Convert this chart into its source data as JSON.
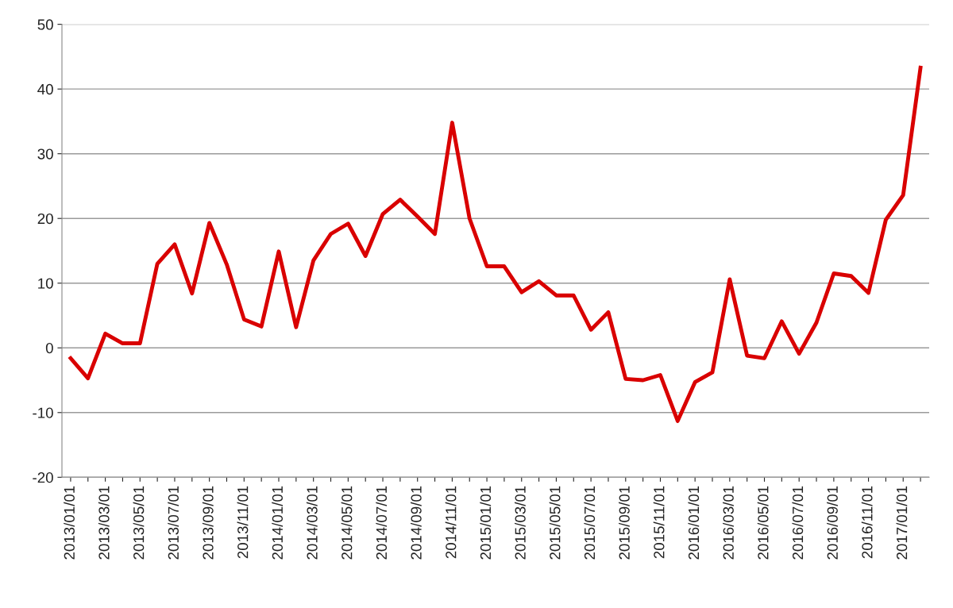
{
  "chart_data": {
    "type": "line",
    "categories": [
      "2013/01/01",
      null,
      "2013/03/01",
      null,
      "2013/05/01",
      null,
      "2013/07/01",
      null,
      "2013/09/01",
      null,
      "2013/11/01",
      null,
      "2014/01/01",
      null,
      "2014/03/01",
      null,
      "2014/05/01",
      null,
      "2014/07/01",
      null,
      "2014/09/01",
      null,
      "2014/11/01",
      null,
      "2015/01/01",
      null,
      "2015/03/01",
      null,
      "2015/05/01",
      null,
      "2015/07/01",
      null,
      "2015/09/01",
      null,
      "2015/11/01",
      null,
      "2016/01/01",
      null,
      "2016/03/01",
      null,
      "2016/05/01",
      null,
      "2016/07/01",
      null,
      "2016/09/01",
      null,
      "2016/11/01",
      null,
      "2017/01/01",
      null
    ],
    "series": [
      {
        "color": "#d90000",
        "values": [
          -1.6,
          -4.7,
          2.2,
          0.7,
          0.7,
          13,
          16,
          8.4,
          19.3,
          12.9,
          4.4,
          3.3,
          14.9,
          3.2,
          13.5,
          17.6,
          19.2,
          14.2,
          20.7,
          22.9,
          20.3,
          17.6,
          34.8,
          20,
          12.6,
          12.6,
          8.6,
          10.3,
          8.1,
          8.1,
          2.8,
          5.5,
          -4.8,
          -5,
          -4.2,
          -11.3,
          -5.3,
          -3.8,
          10.6,
          -1.2,
          -1.6,
          4.1,
          -0.9,
          3.9,
          11.5,
          11.1,
          8.5,
          19.8,
          23.6,
          43.3
        ]
      }
    ],
    "ylim": [
      -20,
      50
    ],
    "yticks": [
      -20,
      -10,
      0,
      10,
      20,
      30,
      40,
      50
    ],
    "grid": "y",
    "marker": "none",
    "line_style": "solid"
  }
}
